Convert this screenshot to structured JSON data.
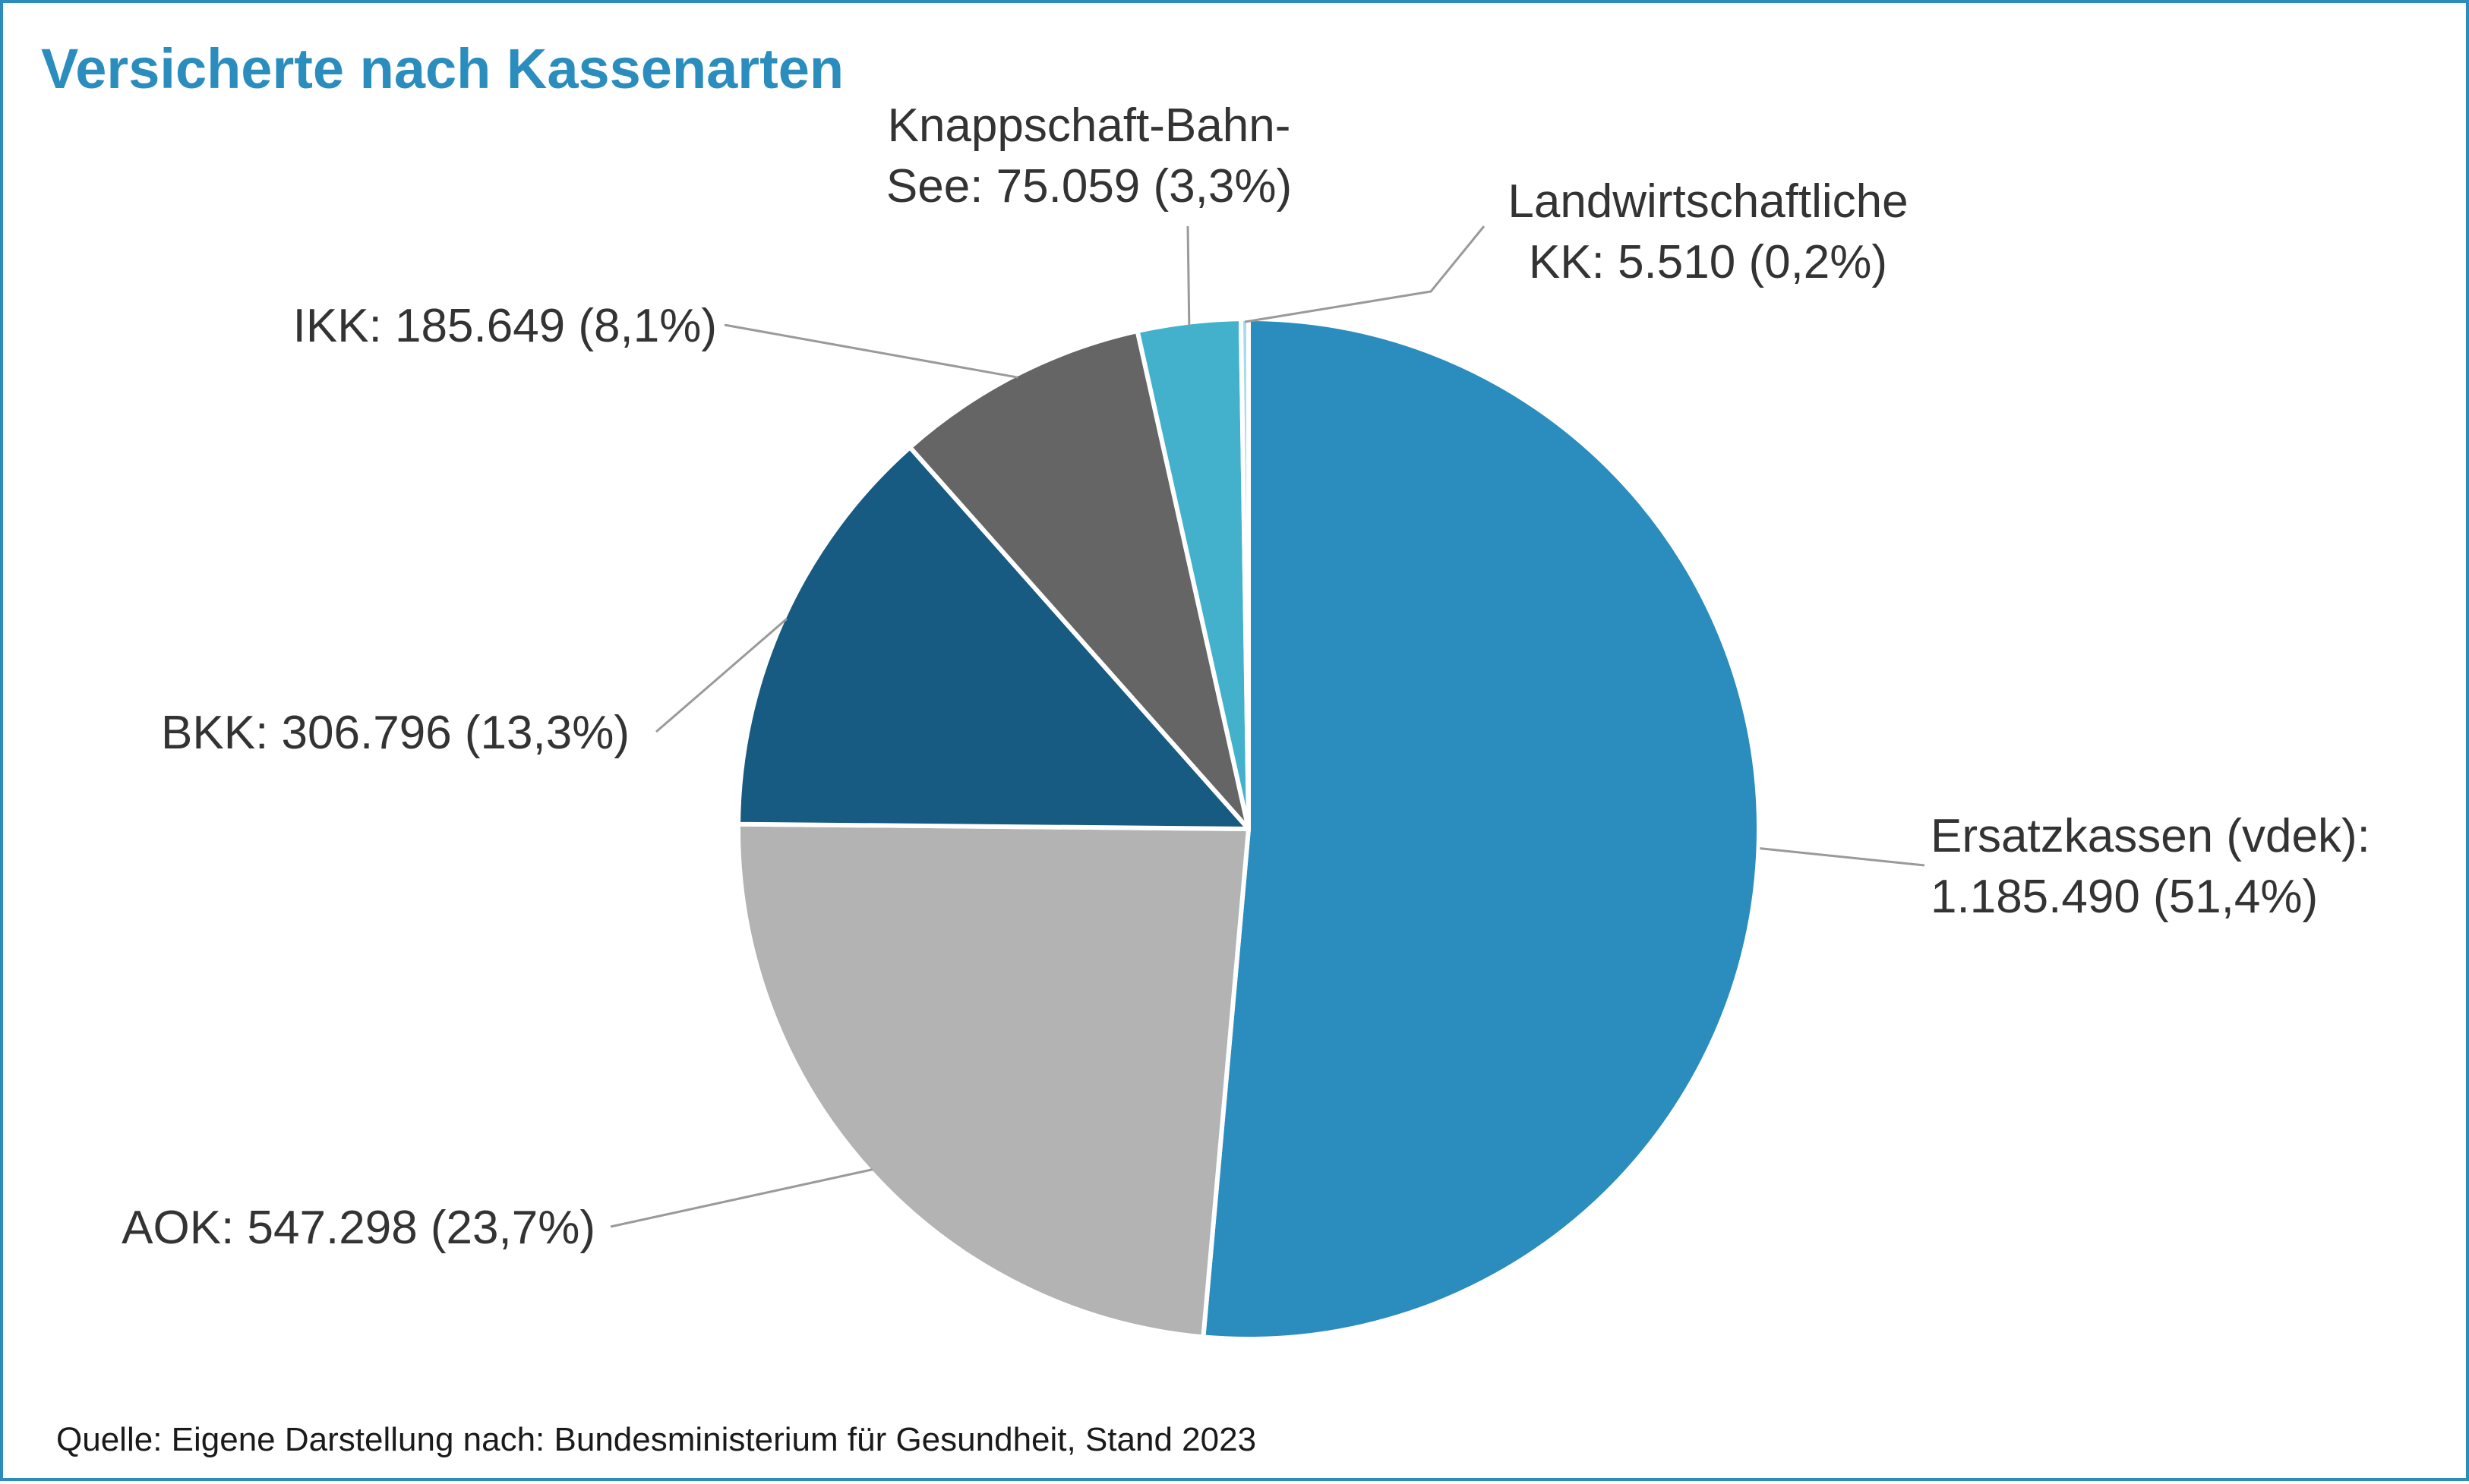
{
  "title": "Versicherte nach Kassenarten",
  "source": "Quelle: Eigene Darstellung nach: Bundesministerium für Gesundheit, Stand 2023",
  "chart_data": {
    "type": "pie",
    "title": "Versicherte nach Kassenarten",
    "slices": [
      {
        "category": "Ersatzkassen (vdek)",
        "value": 1185490,
        "percent": 51.4,
        "color": "#2a8dbd",
        "label_lines": [
          "Ersatzkassen (vdek):",
          "1.185.490 (51,4%)"
        ]
      },
      {
        "category": "AOK",
        "value": 547298,
        "percent": 23.7,
        "color": "#b3b3b3",
        "label_lines": [
          "AOK: 547.298 (23,7%)"
        ]
      },
      {
        "category": "BKK",
        "value": 306796,
        "percent": 13.3,
        "color": "#175a82",
        "label_lines": [
          "BKK: 306.796 (13,3%)"
        ]
      },
      {
        "category": "IKK",
        "value": 185649,
        "percent": 8.1,
        "color": "#656565",
        "label_lines": [
          "IKK: 185.649 (8,1%)"
        ]
      },
      {
        "category": "Knappschaft-Bahn-See",
        "value": 75059,
        "percent": 3.3,
        "color": "#44b1cc",
        "label_lines": [
          "Knappschaft-Bahn-",
          "See: 75.059 (3,3%)"
        ]
      },
      {
        "category": "Landwirtschaftliche KK",
        "value": 5510,
        "percent": 0.2,
        "color": "#a8dcea",
        "label_lines": [
          "Landwirtschaftliche",
          "KK: 5.510 (0,2%)"
        ]
      }
    ],
    "start": "12 o'clock",
    "direction": "clockwise",
    "legend": "none (callout labels)"
  }
}
